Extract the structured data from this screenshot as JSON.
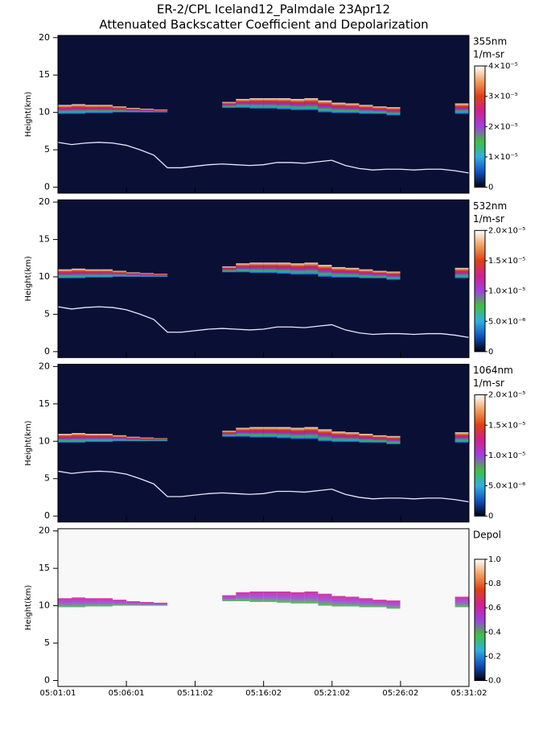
{
  "header": {
    "title": "ER-2/CPL Iceland12_Palmdale 23Apr12",
    "subtitle": "Attenuated Backscatter Coefficient and Depolarization"
  },
  "layers": {
    "x": [
      0,
      1,
      2,
      3,
      4,
      5,
      6,
      7,
      8,
      9,
      10,
      11,
      12,
      13,
      14,
      15,
      16,
      17,
      18,
      19,
      20,
      21,
      22,
      23,
      24,
      25,
      26,
      27,
      28,
      29,
      30
    ],
    "surface": [
      6.0,
      5.7,
      5.9,
      6.0,
      5.9,
      5.6,
      5.0,
      4.3,
      2.6,
      2.6,
      2.8,
      3.0,
      3.1,
      3.0,
      2.9,
      3.0,
      3.3,
      3.3,
      3.2,
      3.4,
      3.6,
      2.9,
      2.5,
      2.3,
      2.4,
      2.4,
      2.3,
      2.4,
      2.4,
      2.2,
      1.9
    ],
    "cloud_top": [
      11.0,
      11.1,
      11.0,
      11.0,
      10.8,
      10.6,
      10.5,
      10.4,
      null,
      null,
      null,
      null,
      11.4,
      11.8,
      11.9,
      11.9,
      11.9,
      11.8,
      11.9,
      11.6,
      11.3,
      11.2,
      11.0,
      10.8,
      10.7,
      null,
      null,
      null,
      null,
      11.2,
      10.8
    ],
    "cloud_base": [
      9.8,
      9.8,
      9.9,
      9.9,
      10.0,
      10.0,
      10.0,
      10.0,
      null,
      null,
      null,
      null,
      10.6,
      10.6,
      10.5,
      10.5,
      10.4,
      10.3,
      10.3,
      10.0,
      9.9,
      9.9,
      9.8,
      9.8,
      9.6,
      null,
      null,
      null,
      null,
      9.8,
      9.6
    ]
  },
  "chart_data": [
    {
      "type": "heatmap",
      "ylabel": "Height(km)",
      "ylim": [
        -0.8,
        20.3
      ],
      "yticks": [
        0,
        5,
        10,
        15,
        20
      ],
      "background": "#0a1035",
      "colorbar": {
        "label": [
          "355nm",
          "1/m-sr"
        ],
        "clim": [
          0,
          4e-05
        ],
        "ticks": [
          0,
          {
            "value": 1e-05,
            "label": "1×10⁻⁵"
          },
          {
            "value": 2e-05,
            "label": "2×10⁻⁵"
          },
          {
            "value": 3e-05,
            "label": "3×10⁻⁵"
          },
          {
            "value": 4e-05,
            "label": "4×10⁻⁵"
          }
        ]
      },
      "colormap": [
        "#000010",
        "#1050c0",
        "#30b0e0",
        "#40c040",
        "#a040e0",
        "#d02090",
        "#e04010",
        "#f0a060",
        "#ffffff"
      ]
    },
    {
      "type": "heatmap",
      "ylabel": "Height(km)",
      "ylim": [
        -0.8,
        20.3
      ],
      "yticks": [
        0,
        5,
        10,
        15,
        20
      ],
      "background": "#0a1035",
      "colorbar": {
        "label": [
          "532nm",
          "1/m-sr"
        ],
        "clim": [
          0,
          2e-05
        ],
        "ticks": [
          0,
          {
            "value": 5e-06,
            "label": "5.0×10⁻⁶"
          },
          {
            "value": 1e-05,
            "label": "1.0×10⁻⁵"
          },
          {
            "value": 1.5e-05,
            "label": "1.5×10⁻⁵"
          },
          {
            "value": 2e-05,
            "label": "2.0×10⁻⁵"
          }
        ]
      },
      "colormap": [
        "#000010",
        "#1050c0",
        "#30b0e0",
        "#40c040",
        "#a040e0",
        "#d02090",
        "#e04010",
        "#f0a060",
        "#ffffff"
      ]
    },
    {
      "type": "heatmap",
      "ylabel": "Height(km)",
      "ylim": [
        -0.8,
        20.3
      ],
      "yticks": [
        0,
        5,
        10,
        15,
        20
      ],
      "background": "#0a1035",
      "colorbar": {
        "label": [
          "1064nm",
          "1/m-sr"
        ],
        "clim": [
          0,
          2e-05
        ],
        "ticks": [
          0,
          {
            "value": 5e-06,
            "label": "5.0×10⁻⁶"
          },
          {
            "value": 1e-05,
            "label": "1.0×10⁻⁵"
          },
          {
            "value": 1.5e-05,
            "label": "1.5×10⁻⁵"
          },
          {
            "value": 2e-05,
            "label": "2.0×10⁻⁵"
          }
        ]
      },
      "colormap": [
        "#000010",
        "#1050c0",
        "#30b0e0",
        "#40c040",
        "#a040e0",
        "#d02090",
        "#e04010",
        "#f0a060",
        "#ffffff"
      ]
    },
    {
      "type": "heatmap",
      "ylabel": "Height(km)",
      "ylim": [
        -0.8,
        20.3
      ],
      "yticks": [
        0,
        5,
        10,
        15,
        20
      ],
      "background": "#f8f8f8",
      "xlim": [
        0,
        30.02
      ],
      "xticks": [
        {
          "value": 0,
          "label": "05:01:01"
        },
        {
          "value": 5,
          "label": "05:06:01"
        },
        {
          "value": 10.02,
          "label": "05:11:02"
        },
        {
          "value": 15.02,
          "label": "05:16:02"
        },
        {
          "value": 20.02,
          "label": "05:21:02"
        },
        {
          "value": 25.02,
          "label": "05:26:02"
        },
        {
          "value": 30.02,
          "label": "05:31:02"
        }
      ],
      "colorbar": {
        "label": [
          "Depol"
        ],
        "clim": [
          0,
          1
        ],
        "ticks": [
          {
            "value": 0,
            "label": "0.0"
          },
          {
            "value": 0.2,
            "label": "0.2"
          },
          {
            "value": 0.4,
            "label": "0.4"
          },
          {
            "value": 0.6,
            "label": "0.6"
          },
          {
            "value": 0.8,
            "label": "0.8"
          },
          {
            "value": 1,
            "label": "1.0"
          }
        ]
      },
      "colormap": [
        "#000010",
        "#1050c0",
        "#30b0e0",
        "#40c040",
        "#a040e0",
        "#d02090",
        "#e04010",
        "#f0a060",
        "#ffffff"
      ]
    }
  ]
}
